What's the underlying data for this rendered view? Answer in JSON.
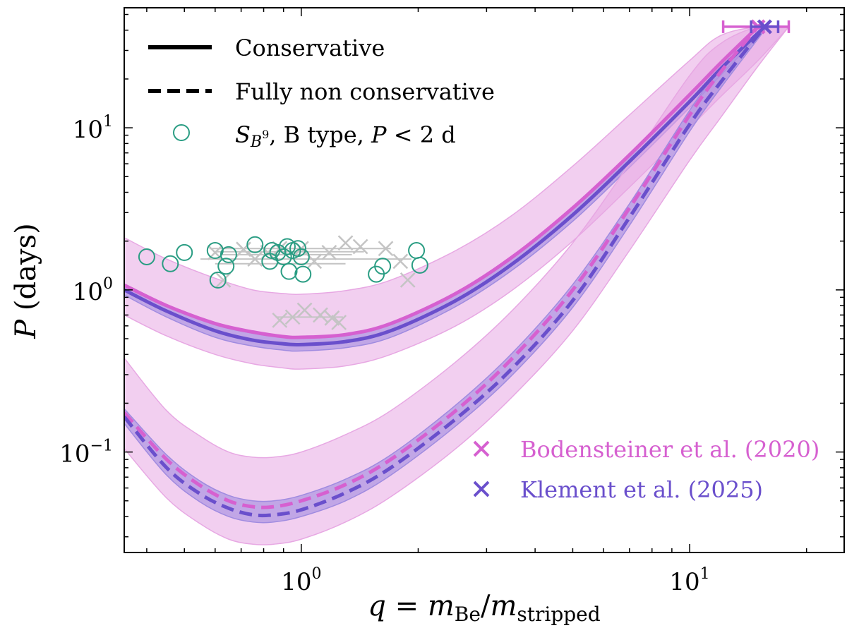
{
  "chart_data": {
    "type": "line",
    "x_scale": "log",
    "y_scale": "log",
    "xlim": [
      0.35,
      25
    ],
    "ylim": [
      0.024,
      55
    ],
    "xlabel": "q = m_Be/m_stripped",
    "xlabel_parts": {
      "lhs": "q = ",
      "m": "m",
      "sub_be": "Be",
      "slash": "/",
      "m2": "m",
      "sub_stripped": "stripped"
    },
    "ylabel": "P (days)",
    "ylabel_parts": {
      "italic": "P",
      "rest": " (days)"
    },
    "x_ticks": [
      {
        "value": 1,
        "base": "10",
        "exp": "0"
      },
      {
        "value": 10,
        "base": "10",
        "exp": "1"
      }
    ],
    "y_ticks": [
      {
        "value": 0.1,
        "base": "10",
        "exp": "−1"
      },
      {
        "value": 1,
        "base": "10",
        "exp": "0"
      },
      {
        "value": 10,
        "base": "10",
        "exp": "1"
      }
    ],
    "grid": false,
    "colors": {
      "bodensteiner": "#d660d0",
      "klement": "#6a4fcc",
      "sample": "#2a9d83",
      "grey": "#c4c4c4",
      "band_pink": "#e7a8e3",
      "band_purple": "#a08be0"
    },
    "legend_style": {
      "position": "top-left",
      "entries": [
        {
          "label": "Conservative",
          "style": "solid-black"
        },
        {
          "label": "Fully non conservative",
          "style": "dashed-black"
        },
        {
          "label_parts": {
            "s": "S",
            "sub": "B",
            "sup": "9",
            "rest": ", B type, ",
            "p": "P",
            "cond": " < 2 d"
          },
          "style": "teal-open-circle"
        }
      ]
    },
    "legend_sources": {
      "position": "bottom-right",
      "entries": [
        {
          "label": "Bodensteiner et al. (2020)",
          "marker": "x",
          "color": "#d660d0"
        },
        {
          "label": "Klement et al. (2025)",
          "marker": "x",
          "color": "#6a4fcc"
        }
      ]
    },
    "reference_points": [
      {
        "name": "Bodensteiner et al. (2020)",
        "q": 15.0,
        "P": 42.0,
        "q_err": [
          12.2,
          18.0
        ]
      },
      {
        "name": "Klement et al. (2025)",
        "q": 15.6,
        "P": 42.0,
        "q_err": [
          14.4,
          16.9
        ]
      }
    ],
    "series": [
      {
        "name": "Bodensteiner et al. (2020) conservative",
        "style": "solid",
        "color": "#d660d0",
        "q": [
          0.35,
          0.45,
          0.6,
          0.75,
          0.9,
          1.0,
          1.3,
          1.7,
          2.5,
          3.5,
          5.0,
          7.0,
          10.0,
          12.0,
          15.0
        ],
        "P": [
          1.07,
          0.8,
          0.62,
          0.55,
          0.515,
          0.51,
          0.53,
          0.62,
          0.95,
          1.6,
          3.2,
          6.8,
          16.0,
          25.0,
          42.0
        ]
      },
      {
        "name": "Klement et al. (2025) conservative",
        "style": "solid",
        "color": "#6a4fcc",
        "q": [
          0.35,
          0.45,
          0.6,
          0.75,
          0.9,
          1.0,
          1.3,
          1.7,
          2.5,
          3.5,
          5.0,
          7.0,
          10.0,
          12.0,
          15.6
        ],
        "P": [
          1.0,
          0.74,
          0.56,
          0.49,
          0.465,
          0.46,
          0.48,
          0.56,
          0.86,
          1.45,
          2.9,
          6.2,
          14.5,
          23.0,
          42.0
        ]
      },
      {
        "name": "Bodensteiner et al. (2020) non conservative",
        "style": "dashed",
        "color": "#d660d0",
        "q": [
          0.35,
          0.45,
          0.55,
          0.65,
          0.75,
          0.85,
          1.0,
          1.3,
          1.7,
          2.5,
          3.5,
          5.0,
          7.0,
          10.0,
          12.0,
          15.0
        ],
        "P": [
          0.175,
          0.09,
          0.062,
          0.05,
          0.046,
          0.046,
          0.05,
          0.063,
          0.09,
          0.18,
          0.38,
          1.0,
          3.2,
          12.0,
          22.0,
          42.0
        ]
      },
      {
        "name": "Klement et al. (2025) non conservative",
        "style": "dashed",
        "color": "#6a4fcc",
        "q": [
          0.35,
          0.45,
          0.55,
          0.65,
          0.75,
          0.85,
          1.0,
          1.3,
          1.7,
          2.5,
          3.5,
          5.0,
          7.0,
          10.0,
          12.0,
          15.6
        ],
        "P": [
          0.165,
          0.08,
          0.055,
          0.045,
          0.041,
          0.041,
          0.044,
          0.056,
          0.08,
          0.16,
          0.33,
          0.86,
          2.8,
          10.5,
          19.0,
          42.0
        ]
      }
    ],
    "bands": [
      {
        "group": "conservative",
        "color": "#e7a8e3",
        "opacity": 0.55,
        "q": [
          0.35,
          0.45,
          0.6,
          0.75,
          0.9,
          1.0,
          1.3,
          1.7,
          2.5,
          3.5,
          5.0,
          7.0,
          10.0,
          12.0,
          15.0,
          18.0
        ],
        "P_low": [
          0.7,
          0.52,
          0.4,
          0.35,
          0.33,
          0.325,
          0.34,
          0.4,
          0.6,
          1.0,
          2.0,
          4.3,
          10.0,
          15.5,
          26.0,
          42.0
        ],
        "P_high": [
          2.1,
          1.55,
          1.18,
          1.0,
          0.95,
          0.94,
          0.99,
          1.15,
          1.75,
          2.9,
          5.8,
          12.0,
          26.0,
          37.0,
          42.0,
          42.0
        ]
      },
      {
        "group": "conservative",
        "color": "#a08be0",
        "opacity": 0.6,
        "q": [
          0.35,
          0.45,
          0.6,
          0.75,
          0.9,
          1.0,
          1.3,
          1.7,
          2.5,
          3.5,
          5.0,
          7.0,
          10.0,
          12.0,
          15.6
        ],
        "P_low": [
          0.93,
          0.68,
          0.51,
          0.45,
          0.425,
          0.42,
          0.44,
          0.51,
          0.79,
          1.33,
          2.65,
          5.7,
          13.3,
          21.0,
          40.0
        ],
        "P_high": [
          1.09,
          0.81,
          0.61,
          0.54,
          0.51,
          0.505,
          0.525,
          0.61,
          0.94,
          1.58,
          3.15,
          6.8,
          15.8,
          25.0,
          42.0
        ]
      },
      {
        "group": "non conservative",
        "color": "#e7a8e3",
        "opacity": 0.55,
        "q": [
          0.35,
          0.45,
          0.55,
          0.65,
          0.75,
          0.85,
          1.0,
          1.3,
          1.7,
          2.5,
          3.5,
          5.0,
          7.0,
          10.0,
          12.0,
          15.0,
          18.0
        ],
        "P_low": [
          0.105,
          0.052,
          0.036,
          0.029,
          0.027,
          0.027,
          0.029,
          0.037,
          0.053,
          0.105,
          0.22,
          0.56,
          1.75,
          6.3,
          11.5,
          24.0,
          42.0
        ],
        "P_high": [
          0.38,
          0.18,
          0.125,
          0.1,
          0.093,
          0.093,
          0.1,
          0.128,
          0.18,
          0.36,
          0.75,
          1.95,
          6.0,
          21.0,
          33.0,
          42.0,
          42.0
        ]
      },
      {
        "group": "non conservative",
        "color": "#a08be0",
        "opacity": 0.6,
        "q": [
          0.35,
          0.45,
          0.55,
          0.65,
          0.75,
          0.85,
          1.0,
          1.3,
          1.7,
          2.5,
          3.5,
          5.0,
          7.0,
          10.0,
          12.0,
          15.6
        ],
        "P_low": [
          0.15,
          0.072,
          0.049,
          0.04,
          0.037,
          0.037,
          0.04,
          0.05,
          0.072,
          0.145,
          0.3,
          0.78,
          2.5,
          9.5,
          17.5,
          40.0
        ],
        "P_high": [
          0.185,
          0.096,
          0.066,
          0.054,
          0.05,
          0.05,
          0.054,
          0.068,
          0.096,
          0.195,
          0.41,
          1.08,
          3.4,
          12.8,
          23.0,
          42.0
        ]
      }
    ],
    "sample_circles": [
      {
        "q": 0.4,
        "P": 1.6
      },
      {
        "q": 0.46,
        "P": 1.45
      },
      {
        "q": 0.5,
        "P": 1.7
      },
      {
        "q": 0.6,
        "P": 1.75
      },
      {
        "q": 0.61,
        "P": 1.15
      },
      {
        "q": 0.64,
        "P": 1.4
      },
      {
        "q": 0.65,
        "P": 1.65
      },
      {
        "q": 0.76,
        "P": 1.9
      },
      {
        "q": 0.83,
        "P": 1.5
      },
      {
        "q": 0.84,
        "P": 1.75
      },
      {
        "q": 0.87,
        "P": 1.7
      },
      {
        "q": 0.9,
        "P": 1.6
      },
      {
        "q": 0.92,
        "P": 1.85
      },
      {
        "q": 0.95,
        "P": 1.75
      },
      {
        "q": 0.93,
        "P": 1.3
      },
      {
        "q": 0.98,
        "P": 1.8
      },
      {
        "q": 1.01,
        "P": 1.25
      },
      {
        "q": 1.0,
        "P": 1.6
      },
      {
        "q": 1.56,
        "P": 1.25
      },
      {
        "q": 1.62,
        "P": 1.4
      },
      {
        "q": 1.98,
        "P": 1.75
      },
      {
        "q": 2.02,
        "P": 1.42
      }
    ],
    "grey_estimates": [
      {
        "q": 0.6,
        "P": 1.7
      },
      {
        "q": 0.63,
        "P": 1.15
      },
      {
        "q": 0.71,
        "P": 1.78
      },
      {
        "q": 0.76,
        "P": 1.55
      },
      {
        "q": 0.82,
        "P": 1.7
      },
      {
        "q": 0.88,
        "P": 1.8
      },
      {
        "q": 1.0,
        "P": 1.8
      },
      {
        "q": 1.08,
        "P": 1.5
      },
      {
        "q": 1.18,
        "P": 1.7
      },
      {
        "q": 1.3,
        "P": 1.95
      },
      {
        "q": 1.42,
        "P": 1.85
      },
      {
        "q": 1.65,
        "P": 1.8
      },
      {
        "q": 1.8,
        "P": 1.5
      },
      {
        "q": 1.88,
        "P": 1.15
      },
      {
        "q": 0.88,
        "P": 0.65
      },
      {
        "q": 0.95,
        "P": 0.68
      },
      {
        "q": 1.02,
        "P": 0.75
      },
      {
        "q": 1.12,
        "P": 0.7
      },
      {
        "q": 1.25,
        "P": 0.63
      },
      {
        "q": 1.2,
        "P": 0.67
      }
    ],
    "grey_segments": [
      {
        "q1": 0.58,
        "q2": 1.7,
        "P": 1.8
      },
      {
        "q1": 0.6,
        "q2": 1.45,
        "P": 1.72
      },
      {
        "q1": 0.55,
        "q2": 1.92,
        "P": 1.55
      },
      {
        "q1": 0.62,
        "q2": 1.35,
        "P": 1.65
      },
      {
        "q1": 0.6,
        "q2": 1.3,
        "P": 1.45
      },
      {
        "q1": 0.86,
        "q2": 1.28,
        "P": 0.68
      }
    ]
  }
}
